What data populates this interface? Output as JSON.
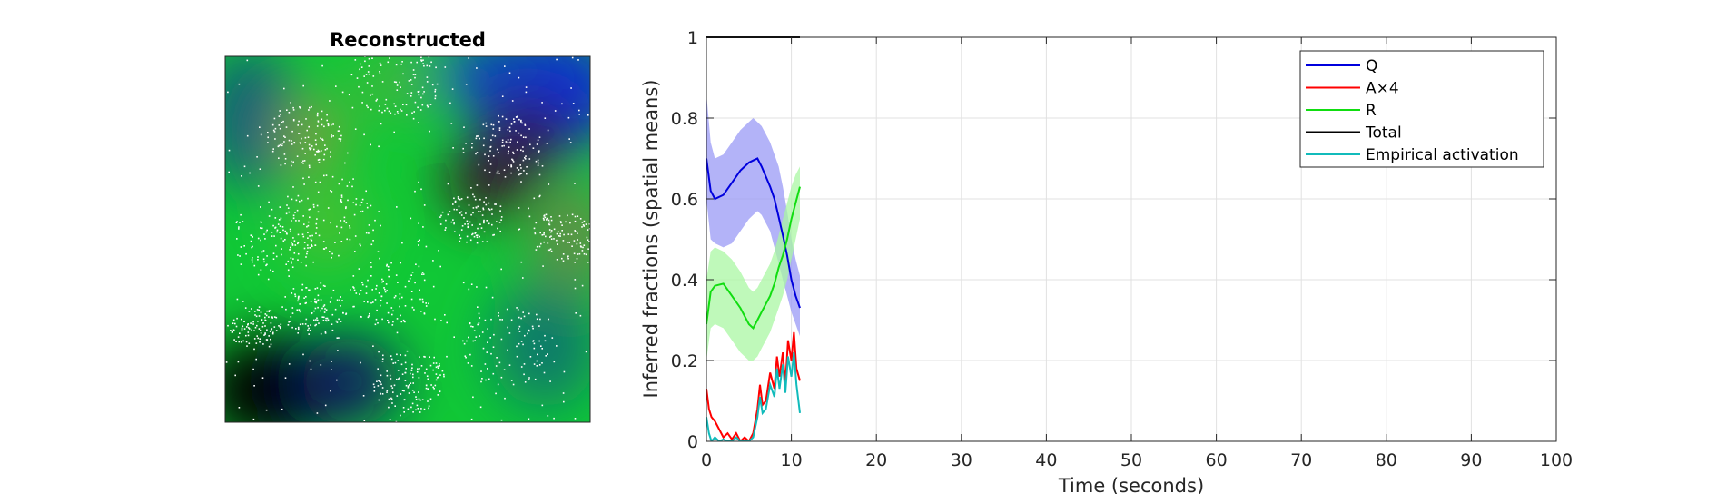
{
  "chart_data": [
    {
      "type": "heatmap",
      "title": "Reconstructed"
    },
    {
      "type": "line",
      "title": "",
      "xlabel": "Time (seconds)",
      "ylabel": "Inferred fractions (spatial means)",
      "xlim": [
        0,
        100
      ],
      "ylim": [
        0,
        1
      ],
      "xticks": [
        0,
        10,
        20,
        30,
        40,
        50,
        60,
        70,
        80,
        90,
        100
      ],
      "yticks": [
        0,
        0.2,
        0.4,
        0.6,
        0.8,
        1
      ],
      "ytick_labels": [
        "0",
        "0.2",
        "0.4",
        "0.6",
        "0.8",
        "1"
      ],
      "grid": true,
      "legend": "top-right",
      "series": [
        {
          "name": "Q",
          "color": "#0000dd",
          "band_color": "#9a9af5",
          "x": [
            0,
            0.5,
            1,
            2,
            3,
            4,
            5,
            5.5,
            6,
            6.5,
            7,
            7.5,
            8,
            8.5,
            9,
            9.5,
            10,
            10.5,
            11
          ],
          "values": [
            0.7,
            0.62,
            0.6,
            0.61,
            0.64,
            0.67,
            0.69,
            0.695,
            0.7,
            0.68,
            0.655,
            0.63,
            0.6,
            0.555,
            0.51,
            0.46,
            0.4,
            0.36,
            0.33
          ],
          "lower": [
            0.6,
            0.5,
            0.49,
            0.48,
            0.49,
            0.52,
            0.55,
            0.56,
            0.57,
            0.56,
            0.54,
            0.52,
            0.48,
            0.44,
            0.4,
            0.36,
            0.32,
            0.29,
            0.26
          ],
          "upper": [
            0.86,
            0.74,
            0.7,
            0.71,
            0.74,
            0.77,
            0.79,
            0.8,
            0.79,
            0.78,
            0.76,
            0.74,
            0.71,
            0.68,
            0.63,
            0.57,
            0.5,
            0.45,
            0.41
          ]
        },
        {
          "name": "A×4",
          "color": "#ff0000",
          "x": [
            0,
            0.3,
            0.6,
            1,
            1.5,
            2,
            2.5,
            3,
            3.5,
            4,
            4.5,
            5,
            5.5,
            6,
            6.3,
            6.6,
            7,
            7.5,
            8,
            8.3,
            8.6,
            9,
            9.3,
            9.6,
            10,
            10.3,
            10.6,
            11
          ],
          "values": [
            0.13,
            0.08,
            0.06,
            0.05,
            0.03,
            0.01,
            0.02,
            0.005,
            0.02,
            0.0,
            0.01,
            0.0,
            0.02,
            0.08,
            0.14,
            0.09,
            0.1,
            0.17,
            0.13,
            0.21,
            0.16,
            0.22,
            0.14,
            0.25,
            0.2,
            0.27,
            0.18,
            0.15
          ]
        },
        {
          "name": "R",
          "color": "#11dd11",
          "band_color": "#a9f7a3",
          "x": [
            0,
            0.5,
            1,
            2,
            3,
            4,
            5,
            5.5,
            6,
            6.5,
            7,
            7.5,
            8,
            8.5,
            9,
            9.5,
            10,
            10.5,
            11
          ],
          "values": [
            0.29,
            0.37,
            0.385,
            0.39,
            0.36,
            0.33,
            0.29,
            0.28,
            0.3,
            0.32,
            0.34,
            0.36,
            0.39,
            0.43,
            0.46,
            0.5,
            0.55,
            0.59,
            0.63
          ],
          "lower": [
            0.2,
            0.28,
            0.29,
            0.28,
            0.25,
            0.22,
            0.2,
            0.2,
            0.21,
            0.23,
            0.25,
            0.27,
            0.3,
            0.33,
            0.36,
            0.4,
            0.45,
            0.5,
            0.55
          ],
          "upper": [
            0.4,
            0.47,
            0.48,
            0.47,
            0.45,
            0.42,
            0.38,
            0.37,
            0.38,
            0.4,
            0.42,
            0.44,
            0.47,
            0.51,
            0.55,
            0.59,
            0.63,
            0.66,
            0.68
          ]
        },
        {
          "name": "Total",
          "color": "#000000",
          "x": [
            0,
            11
          ],
          "values": [
            1,
            1
          ]
        },
        {
          "name": "Empirical activation",
          "color": "#11bbbb",
          "x": [
            0,
            0.3,
            0.6,
            1,
            1.5,
            2,
            2.5,
            3,
            3.5,
            4,
            4.5,
            5,
            5.5,
            6,
            6.3,
            6.6,
            7,
            7.5,
            8,
            8.3,
            8.6,
            9,
            9.3,
            9.6,
            10,
            10.3,
            10.6,
            11
          ],
          "values": [
            0.06,
            0.02,
            0.0,
            0.01,
            0.0,
            0.005,
            0.0,
            0.0,
            0.01,
            0.0,
            0.0,
            0.0,
            0.01,
            0.06,
            0.11,
            0.07,
            0.08,
            0.14,
            0.11,
            0.18,
            0.13,
            0.19,
            0.12,
            0.21,
            0.16,
            0.22,
            0.14,
            0.07
          ]
        }
      ]
    }
  ]
}
